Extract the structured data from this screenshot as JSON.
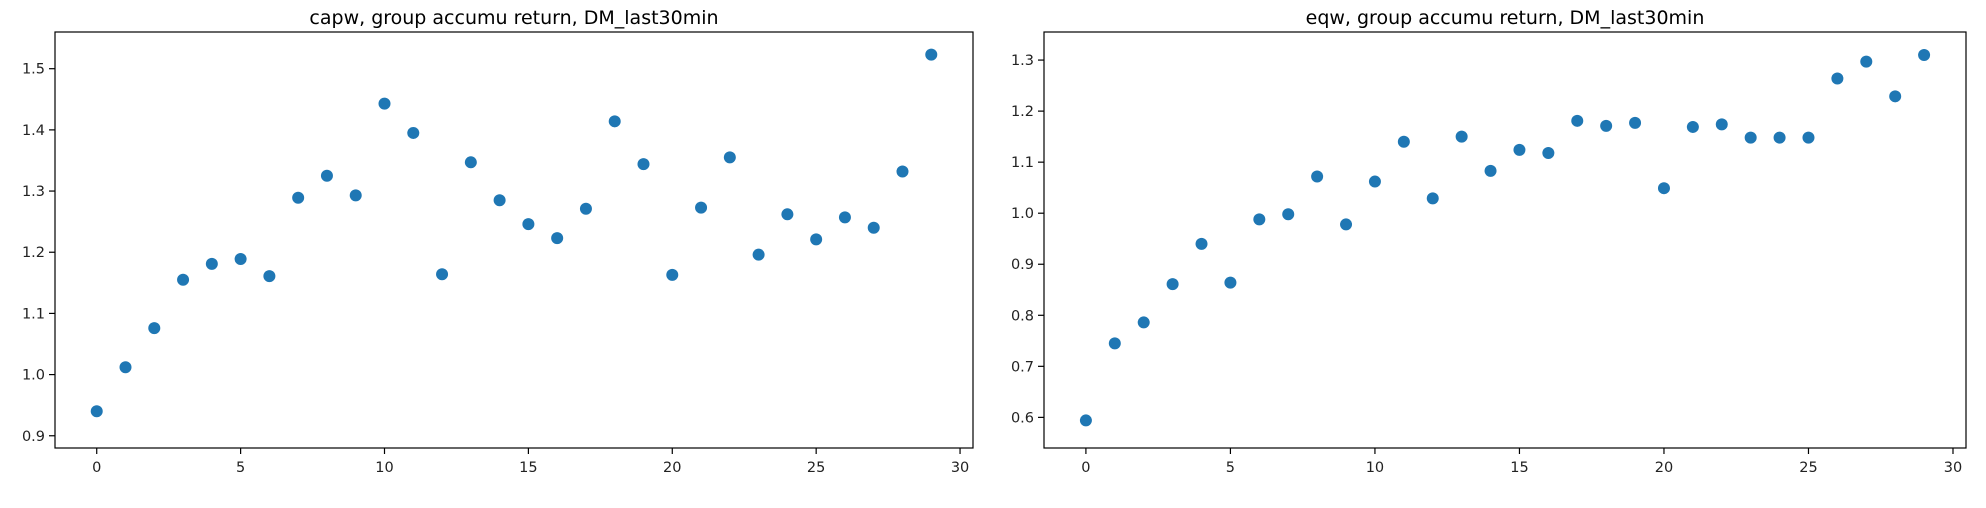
{
  "chart_data": [
    {
      "type": "scatter",
      "title": "capw, group accumu return, DM_last30min",
      "xlabel": "",
      "ylabel": "",
      "xlim": [
        -1.45,
        30.45
      ],
      "ylim": [
        0.88,
        1.56
      ],
      "xticks": [
        0,
        5,
        10,
        15,
        20,
        25,
        30
      ],
      "yticks": [
        0.9,
        1.0,
        1.1,
        1.2,
        1.3,
        1.4,
        1.5
      ],
      "grid": false,
      "series": [
        {
          "color": "#1f77b4",
          "x": [
            0,
            1,
            2,
            3,
            4,
            5,
            6,
            7,
            8,
            9,
            10,
            11,
            12,
            13,
            14,
            15,
            16,
            17,
            18,
            19,
            20,
            21,
            22,
            23,
            24,
            25,
            26,
            27,
            28,
            29
          ],
          "y": [
            0.94,
            1.012,
            1.076,
            1.155,
            1.181,
            1.189,
            1.161,
            1.289,
            1.325,
            1.293,
            1.443,
            1.395,
            1.164,
            1.347,
            1.285,
            1.246,
            1.223,
            1.271,
            1.414,
            1.344,
            1.163,
            1.273,
            1.355,
            1.196,
            1.262,
            1.221,
            1.257,
            1.24,
            1.332,
            1.523
          ]
        }
      ]
    },
    {
      "type": "scatter",
      "title": "eqw, group accumu return, DM_last30min",
      "xlabel": "",
      "ylabel": "",
      "xlim": [
        -1.45,
        30.45
      ],
      "ylim": [
        0.54,
        1.355
      ],
      "xticks": [
        0,
        5,
        10,
        15,
        20,
        25,
        30
      ],
      "yticks": [
        0.6,
        0.7,
        0.8,
        0.9,
        1.0,
        1.1,
        1.2,
        1.3
      ],
      "grid": false,
      "series": [
        {
          "color": "#1f77b4",
          "x": [
            0,
            1,
            2,
            3,
            4,
            5,
            6,
            7,
            8,
            9,
            10,
            11,
            12,
            13,
            14,
            15,
            16,
            17,
            18,
            19,
            20,
            21,
            22,
            23,
            24,
            25,
            26,
            27,
            28,
            29
          ],
          "y": [
            0.594,
            0.745,
            0.786,
            0.861,
            0.94,
            0.864,
            0.988,
            0.998,
            1.072,
            0.978,
            1.062,
            1.14,
            1.029,
            1.15,
            1.083,
            1.124,
            1.118,
            1.181,
            1.171,
            1.177,
            1.049,
            1.169,
            1.174,
            1.148,
            1.148,
            1.148,
            1.264,
            1.297,
            1.229,
            1.31
          ]
        }
      ]
    }
  ]
}
